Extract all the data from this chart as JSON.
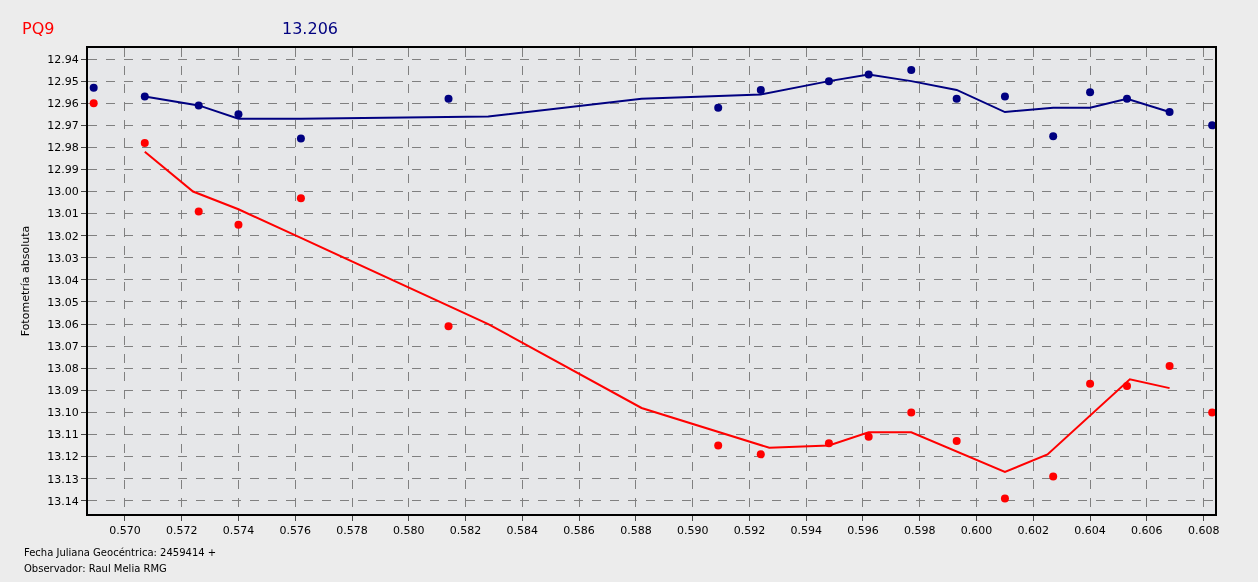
{
  "chart_data": {
    "type": "scatter",
    "title": "PQ9",
    "subtitle": "13.206",
    "ylabel": "Fotometría absoluta",
    "annotations": [
      "Fecha Juliana Geocéntrica: 2459414 +",
      "Observador: Raul Melia RMG"
    ],
    "xlim": [
      0.5687,
      0.6084
    ],
    "ylim": [
      13.146,
      12.935
    ],
    "xticks": [
      {
        "value": 0.57,
        "label": "0.570"
      },
      {
        "value": 0.572,
        "label": "0.572"
      },
      {
        "value": 0.574,
        "label": "0.574"
      },
      {
        "value": 0.576,
        "label": "0.576"
      },
      {
        "value": 0.578,
        "label": "0.578"
      },
      {
        "value": 0.58,
        "label": "0.580"
      },
      {
        "value": 0.582,
        "label": "0.582"
      },
      {
        "value": 0.584,
        "label": "0.584"
      },
      {
        "value": 0.586,
        "label": "0.586"
      },
      {
        "value": 0.588,
        "label": "0.588"
      },
      {
        "value": 0.59,
        "label": "0.590"
      },
      {
        "value": 0.592,
        "label": "0.592"
      },
      {
        "value": 0.594,
        "label": "0.594"
      },
      {
        "value": 0.596,
        "label": "0.596"
      },
      {
        "value": 0.598,
        "label": "0.598"
      },
      {
        "value": 0.6,
        "label": "0.600"
      },
      {
        "value": 0.602,
        "label": "0.602"
      },
      {
        "value": 0.604,
        "label": "0.604"
      },
      {
        "value": 0.606,
        "label": "0.606"
      },
      {
        "value": 0.608,
        "label": "0.608"
      }
    ],
    "yticks": [
      12.94,
      12.95,
      12.96,
      12.97,
      12.98,
      12.99,
      {
        "value": 13.0,
        "label": "13.00"
      },
      13.01,
      13.02,
      13.03,
      13.04,
      13.05,
      13.06,
      13.07,
      13.08,
      13.09,
      {
        "value": 13.1,
        "label": "13.10"
      },
      13.11,
      13.12,
      13.13,
      13.14
    ],
    "grid": true,
    "series": [
      {
        "marker": "circle",
        "color": "#000080",
        "x": [
          0.5689,
          0.5707,
          0.5726,
          0.574,
          0.5762,
          0.5814,
          0.5909,
          0.5924,
          0.5948,
          0.5962,
          0.5977,
          0.5993,
          0.601,
          0.6027,
          0.604,
          0.6053,
          0.6068,
          0.6083
        ],
        "values": [
          12.953,
          12.957,
          12.961,
          12.965,
          12.976,
          12.958,
          12.962,
          12.954,
          12.95,
          12.947,
          12.945,
          12.958,
          12.957,
          12.975,
          12.955,
          12.958,
          12.964,
          12.97
        ]
      },
      {
        "marker": "circle",
        "color": "#ff0000",
        "x": [
          0.5689,
          0.5707,
          0.5726,
          0.574,
          0.5762,
          0.5814,
          0.5909,
          0.5924,
          0.5948,
          0.5962,
          0.5977,
          0.5993,
          0.601,
          0.6027,
          0.604,
          0.6053,
          0.6068,
          0.6083
        ],
        "values": [
          12.96,
          12.978,
          13.009,
          13.015,
          13.003,
          13.061,
          13.115,
          13.119,
          13.114,
          13.111,
          13.1,
          13.113,
          13.139,
          13.129,
          13.087,
          13.088,
          13.079,
          13.1
        ]
      },
      {
        "type": "line",
        "color": "#000080",
        "x": [
          0.5707,
          0.5726,
          0.574,
          0.5762,
          0.5828,
          0.5882,
          0.5924,
          0.5948,
          0.5962,
          0.5977,
          0.5993,
          0.601,
          0.6027,
          0.604,
          0.6053,
          0.6068
        ],
        "values": [
          12.957,
          12.961,
          12.967,
          12.967,
          12.966,
          12.958,
          12.956,
          12.95,
          12.947,
          12.95,
          12.954,
          12.964,
          12.962,
          12.962,
          12.958,
          12.964
        ]
      },
      {
        "type": "line",
        "color": "#ff0000",
        "x": [
          0.5707,
          0.5724,
          0.574,
          0.5762,
          0.5828,
          0.5882,
          0.5927,
          0.5948,
          0.5962,
          0.5977,
          0.601,
          0.6025,
          0.6054,
          0.6068
        ],
        "values": [
          12.982,
          13.0,
          13.008,
          13.021,
          13.06,
          13.098,
          13.116,
          13.115,
          13.109,
          13.109,
          13.127,
          13.119,
          13.085,
          13.089
        ]
      }
    ]
  }
}
